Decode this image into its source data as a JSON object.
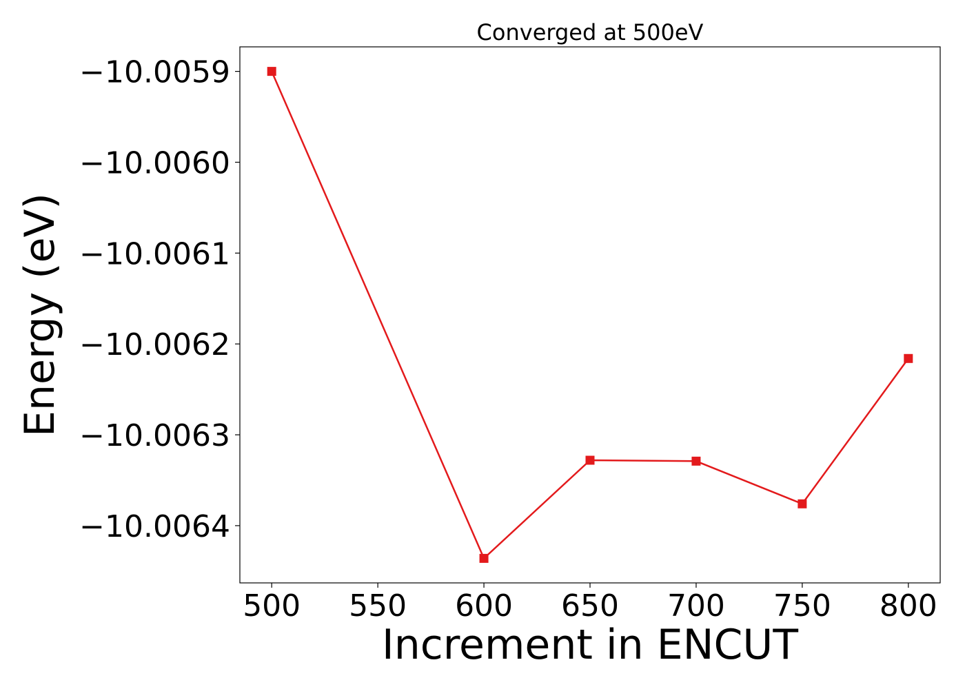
{
  "chart_data": {
    "type": "line",
    "title": "Converged at 500eV",
    "xlabel": "Increment in ENCUT",
    "ylabel": "Energy (eV)",
    "x": [
      500,
      600,
      650,
      700,
      750,
      800
    ],
    "series": [
      {
        "values": [
          -10.0059,
          -10.006436,
          -10.006328,
          -10.006329,
          -10.006376,
          -10.006216
        ],
        "color": "#e31a1c",
        "marker": "square"
      }
    ],
    "xlim": [
      485,
      815
    ],
    "ylim": [
      -10.006463,
      -10.005873
    ],
    "xticks": [
      500,
      550,
      600,
      650,
      700,
      750,
      800
    ],
    "xtick_labels": [
      "500",
      "550",
      "600",
      "650",
      "700",
      "750",
      "800"
    ],
    "yticks": [
      -10.0059,
      -10.006,
      -10.0061,
      -10.0062,
      -10.0063,
      -10.0064
    ],
    "ytick_labels": [
      "−10.0059",
      "−10.0060",
      "−10.0061",
      "−10.0062",
      "−10.0063",
      "−10.0064"
    ],
    "grid": false,
    "legend": "none"
  }
}
